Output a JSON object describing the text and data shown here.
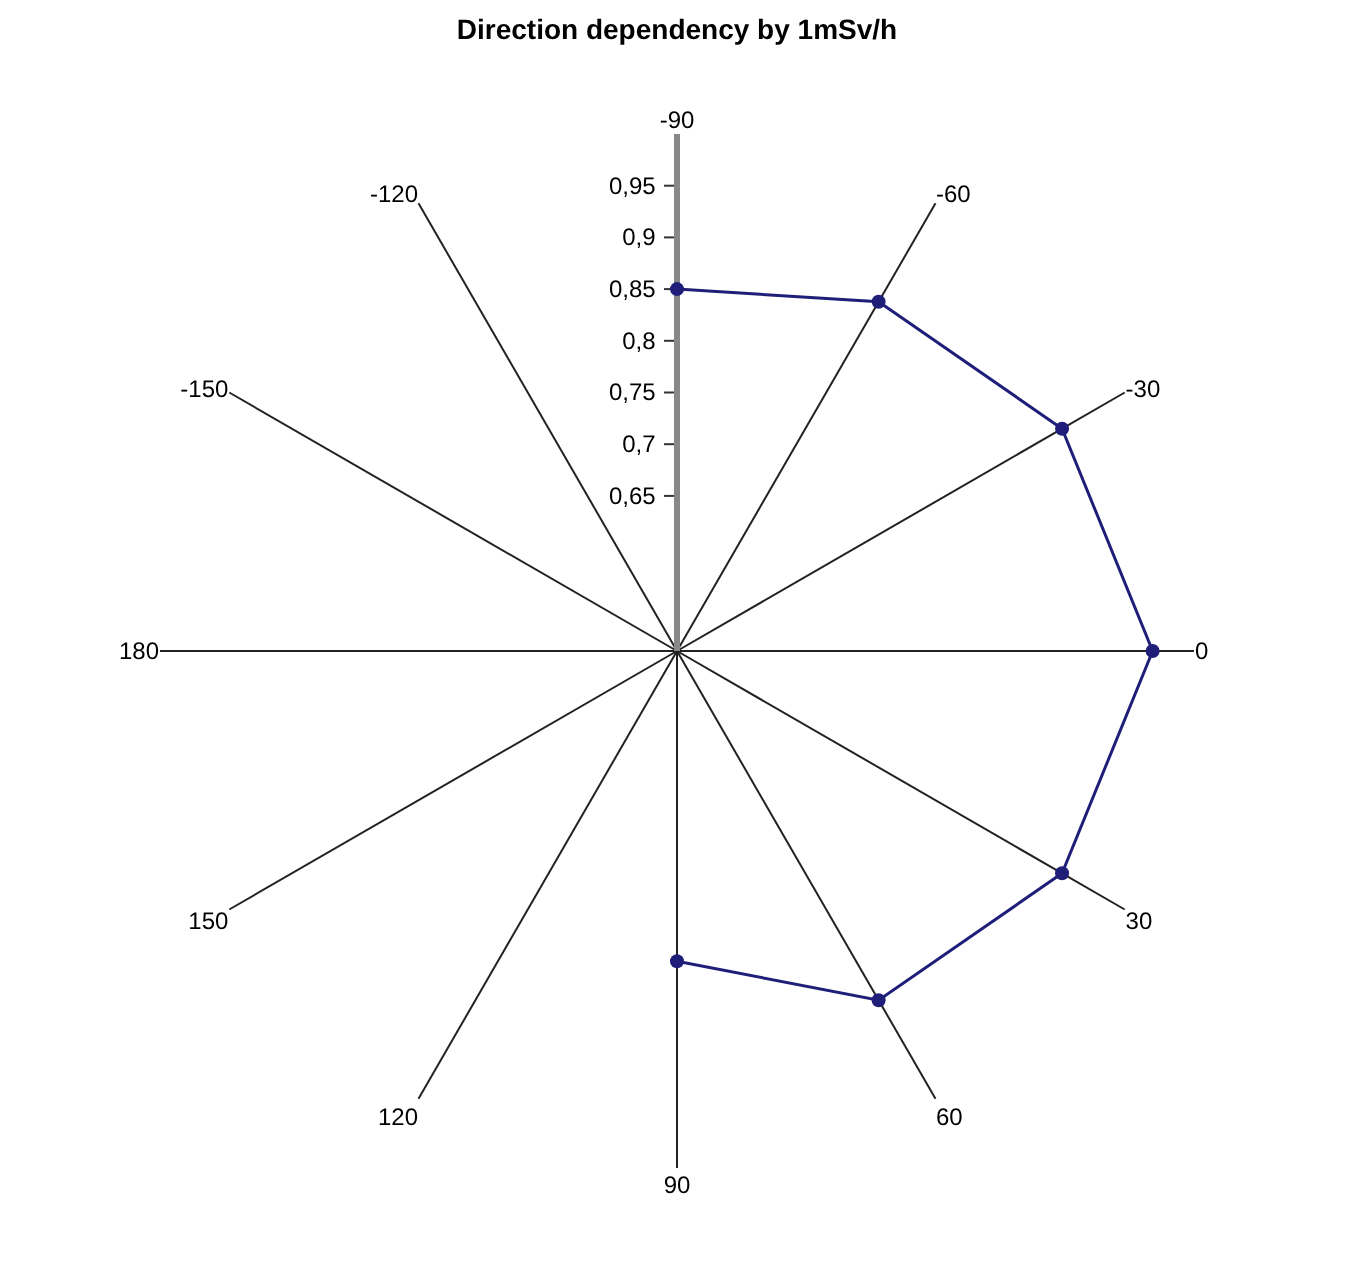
{
  "chart_data": {
    "type": "radar",
    "title": "Direction dependency by 1mSv/h",
    "categories": [
      "-90",
      "-60",
      "-30",
      "0",
      "30",
      "60",
      "90",
      "120",
      "150",
      "180",
      "-150",
      "-120"
    ],
    "series": [
      {
        "color": "#1f1f7a",
        "values": [
          0.85,
          0.89,
          0.93,
          0.96,
          0.93,
          0.89,
          0.8,
          null,
          null,
          null,
          null,
          null
        ]
      }
    ],
    "ylim": [
      0.5,
      1.0
    ],
    "yticks": [
      {
        "value": 0.65,
        "label": "0,65"
      },
      {
        "value": 0.7,
        "label": "0,7"
      },
      {
        "value": 0.75,
        "label": "0,75"
      },
      {
        "value": 0.8,
        "label": "0,8"
      },
      {
        "value": 0.85,
        "label": "0,85"
      },
      {
        "value": 0.9,
        "label": "0,9"
      },
      {
        "value": 0.95,
        "label": "0,95"
      }
    ],
    "grid": "x",
    "marker": "circle",
    "line_style": "solid"
  }
}
